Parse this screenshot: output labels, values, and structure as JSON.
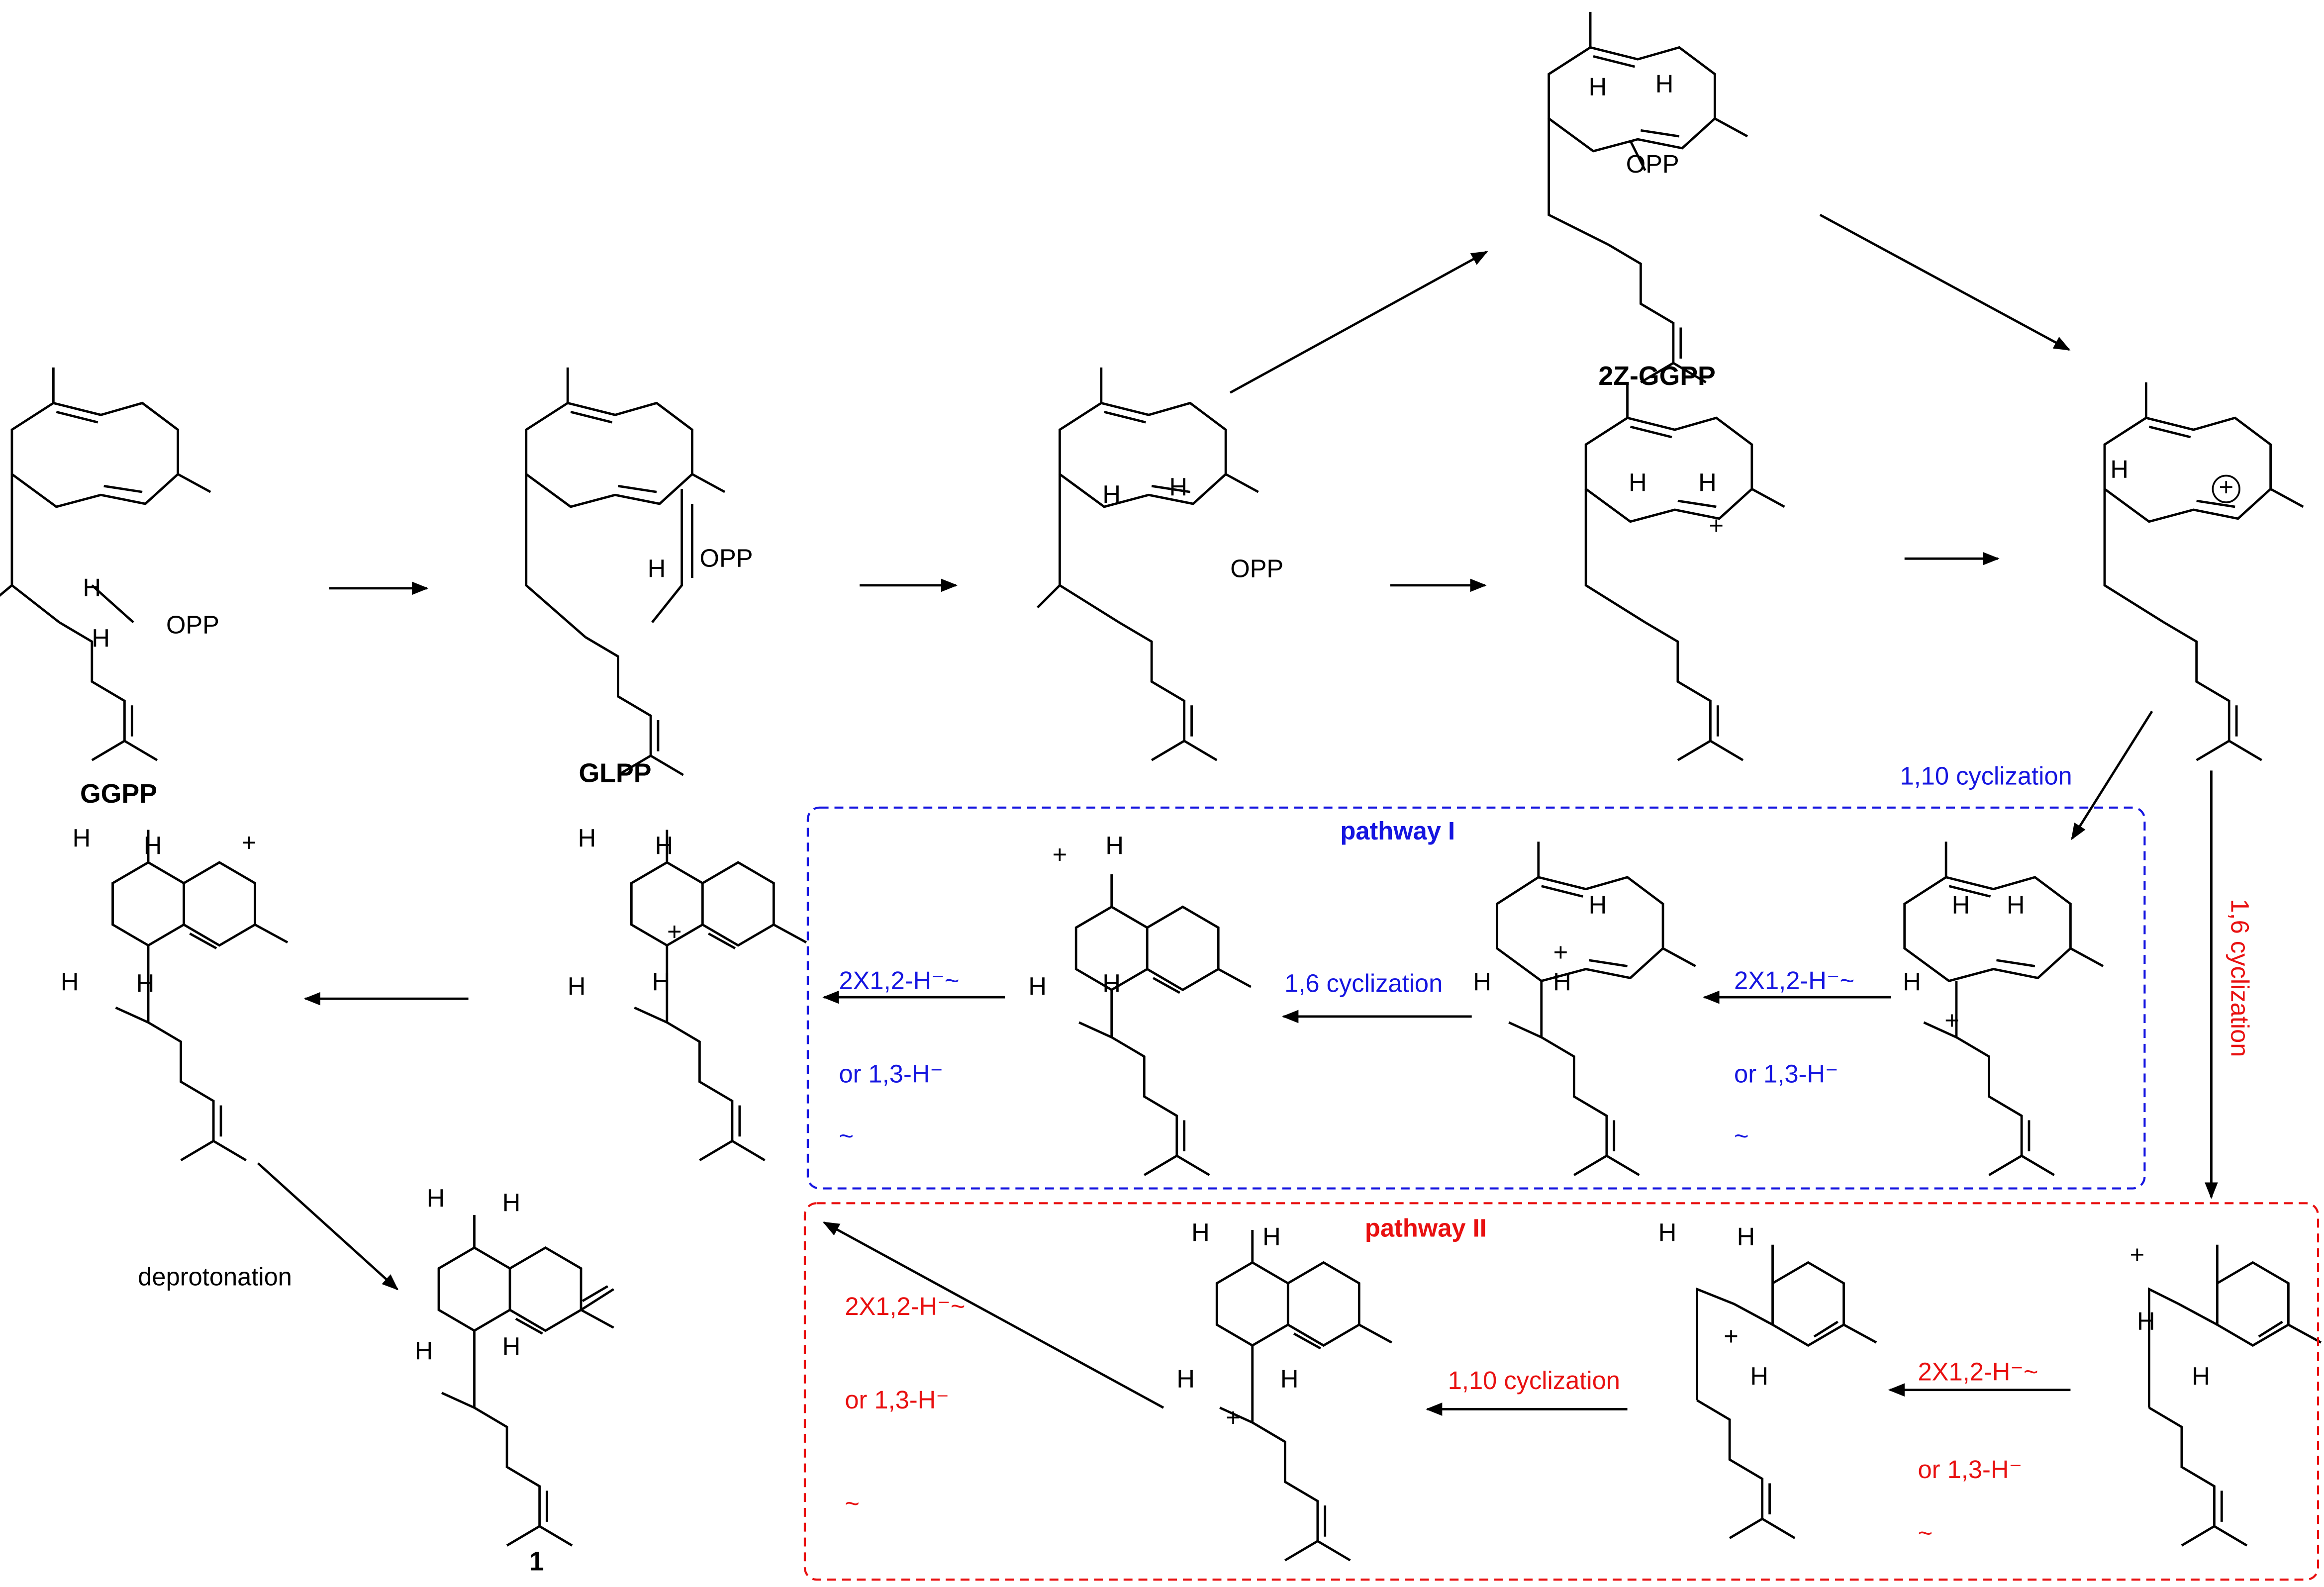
{
  "molecules": [
    {
      "name": "GGPP",
      "atoms": [
        "H",
        "H",
        "OPP"
      ]
    },
    {
      "name": "GLPP",
      "atoms": [
        "H",
        "OPP"
      ]
    },
    {
      "atoms": [
        "H",
        "H",
        "OPP"
      ]
    },
    {
      "name": "2Z-GGPP",
      "atoms": [
        "H",
        "H",
        "OPP"
      ]
    },
    {
      "atoms": [
        "H",
        "H",
        "+"
      ]
    },
    {
      "atoms": [
        "H",
        "+"
      ]
    },
    {
      "atoms": [
        "H",
        "H",
        "H",
        "H",
        "+"
      ]
    },
    {
      "atoms": [
        "H",
        "H",
        "H",
        "H",
        "+"
      ]
    },
    {
      "atoms": [
        "+",
        "H",
        "H",
        "H"
      ]
    },
    {
      "atoms": [
        "H",
        "H",
        "+",
        "H"
      ]
    },
    {
      "atoms": [
        "H",
        "H",
        "H",
        "+"
      ]
    },
    {
      "name": "1",
      "atoms": [
        "H",
        "H",
        "H",
        "H"
      ]
    },
    {
      "atoms": [
        "H",
        "H",
        "H",
        "H",
        "+"
      ]
    },
    {
      "atoms": [
        "H",
        "H",
        "+",
        "H"
      ]
    },
    {
      "atoms": [
        "+",
        "H",
        "H"
      ]
    }
  ],
  "annotations": [
    "1,10 cyclization",
    "1,6 cyclization",
    "pathway I",
    "2X1,2-H⁻~",
    "or 1,3-H⁻",
    "~",
    "1,6 cyclization",
    "2X1,2-H⁻~",
    "or 1,3-H⁻",
    "~",
    "deprotonation",
    "pathway II",
    "1,10 cyclization",
    "2X1,2-H⁻~",
    "or 1,3-H⁻",
    "~",
    "2X1,2-H⁻~",
    "or 1,3-H⁻",
    "~"
  ]
}
